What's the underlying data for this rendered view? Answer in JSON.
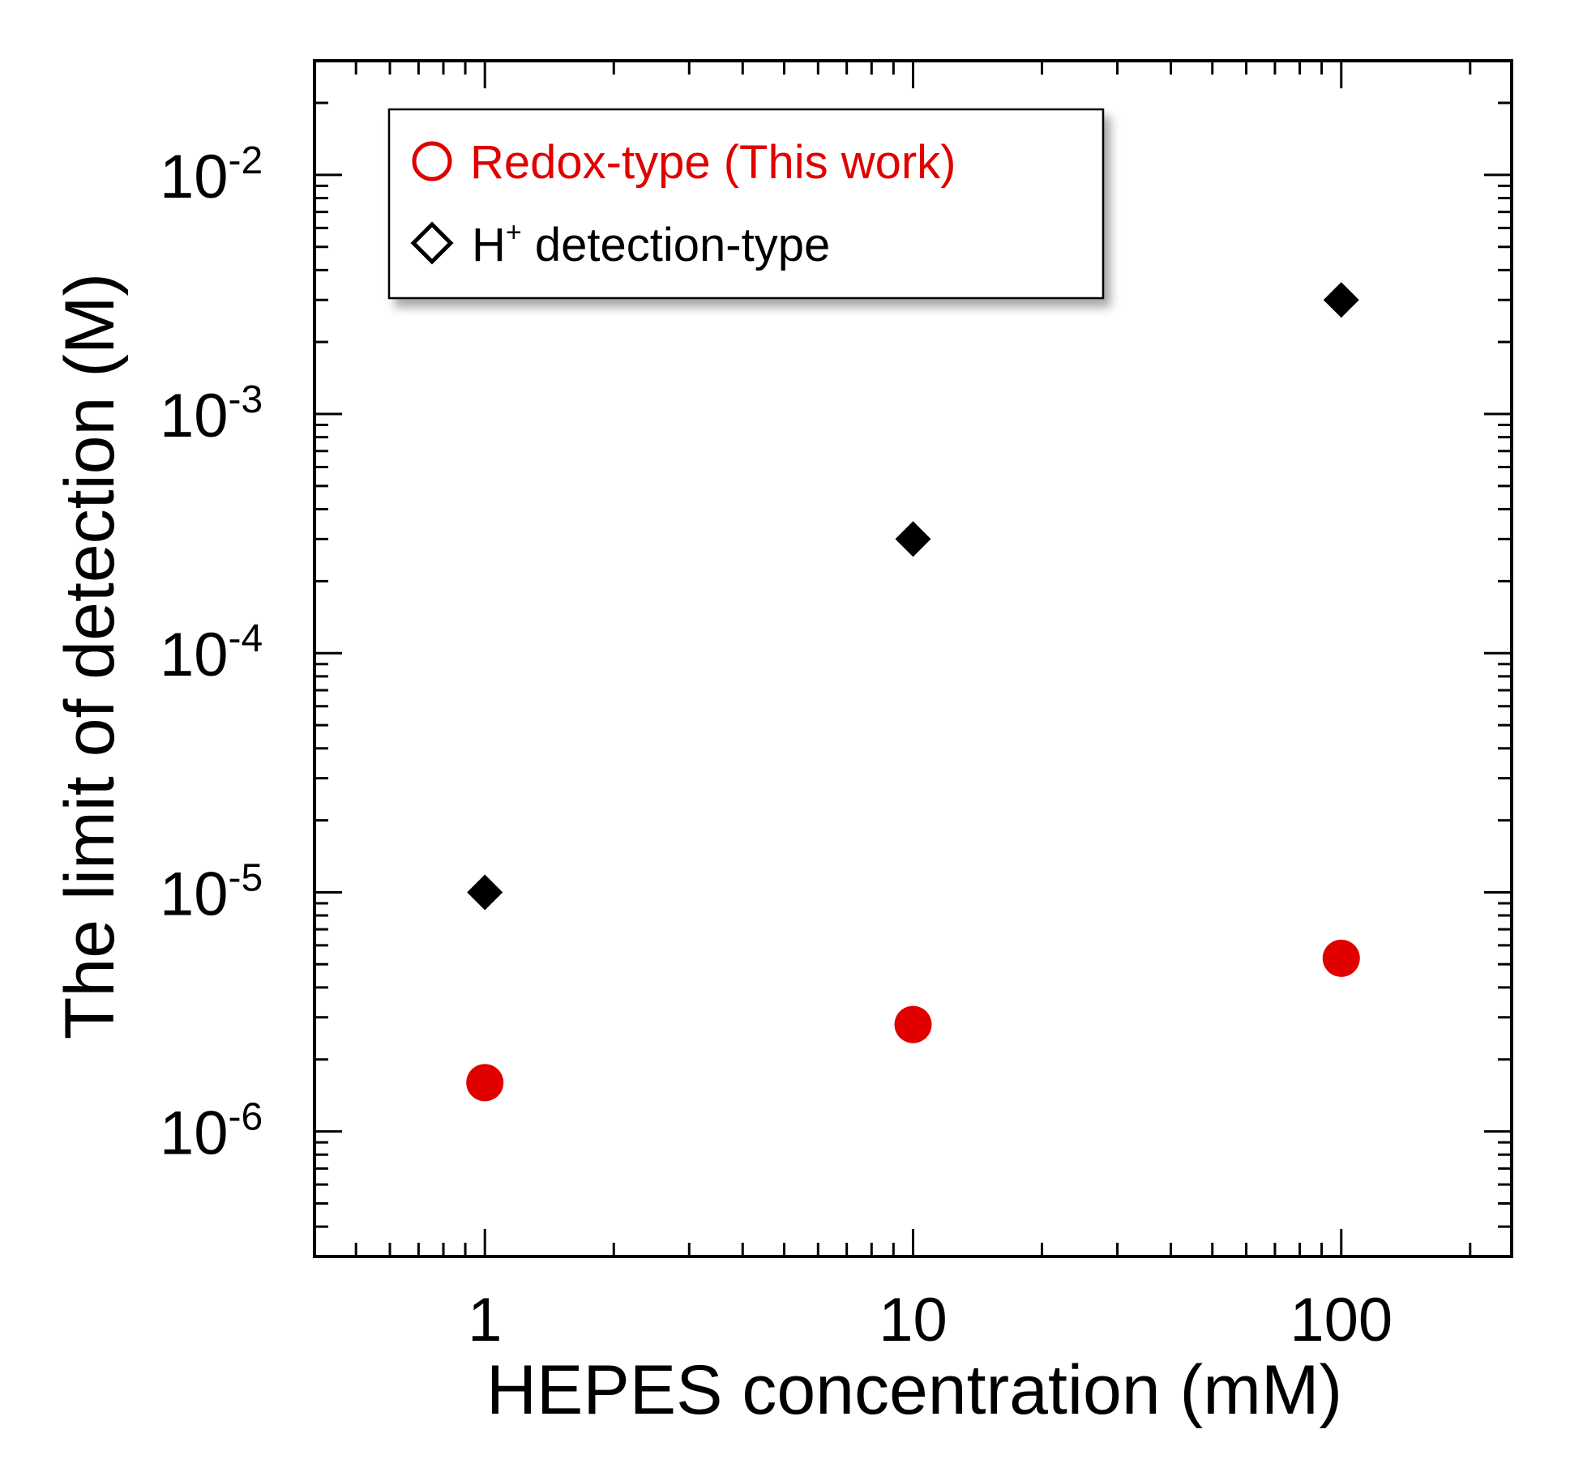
{
  "chart_data": {
    "type": "scatter",
    "xscale": "log",
    "yscale": "log",
    "xlabel": "HEPES concentration (mM)",
    "ylabel": "The limit of detection (M)",
    "xlim": [
      0.4,
      250
    ],
    "ylim": [
      3e-07,
      0.03
    ],
    "xticks": [
      {
        "value": 1,
        "label": "1"
      },
      {
        "value": 10,
        "label": "10"
      },
      {
        "value": 100,
        "label": "100"
      }
    ],
    "yticks": [
      {
        "value": 1e-06,
        "base": "10",
        "exponent": "-6"
      },
      {
        "value": 1e-05,
        "base": "10",
        "exponent": "-5"
      },
      {
        "value": 0.0001,
        "base": "10",
        "exponent": "-4"
      },
      {
        "value": 0.001,
        "base": "10",
        "exponent": "-3"
      },
      {
        "value": 0.01,
        "base": "10",
        "exponent": "-2"
      }
    ],
    "series": [
      {
        "name": "Redox-type (This work)",
        "marker": "circle",
        "color": "#e00000",
        "x": [
          1,
          10,
          100
        ],
        "y": [
          1.6e-06,
          2.8e-06,
          5.3e-06
        ]
      },
      {
        "name": "H+ detection-type",
        "marker": "diamond",
        "color": "#000000",
        "x": [
          1,
          10,
          100
        ],
        "y": [
          1e-05,
          0.0003,
          0.003
        ]
      }
    ],
    "legend": {
      "position": "top-left",
      "entries": [
        {
          "symbol": "circle-open",
          "color": "#e00000",
          "text": "Redox-type (This work)"
        },
        {
          "symbol": "diamond-open",
          "color": "#000000",
          "text_main": "H",
          "text_sup": "+",
          "text_rest": " detection-type"
        }
      ]
    }
  }
}
